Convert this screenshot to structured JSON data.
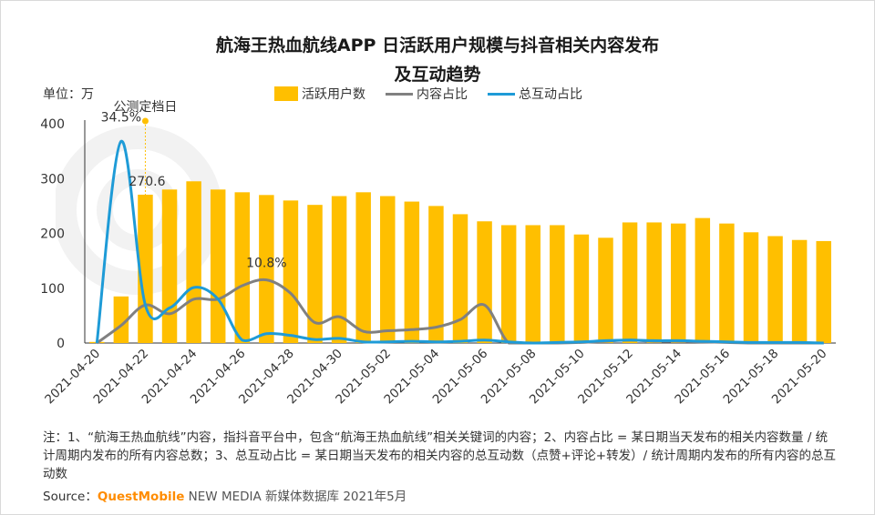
{
  "title_line1": "航海王热血航线APP 日活跃用户规模与抖音相关内容发布",
  "title_line2": "及互动趋势",
  "unit": "单位：万",
  "legend": {
    "bar": "活跃用户数",
    "content": "内容占比",
    "interaction": "总互动占比"
  },
  "annotation": "公测定档日",
  "notes": "注：1、“航海王热血航线”内容，指抖音平台中，包含“航海王热血航线”相关关键词的内容；2、内容占比 = 某日期当天发布的相关内容数量 / 统计周期内发布的所有内容总数；3、总互动占比 = 某日期当天发布的相关内容的总互动数（点赞+评论+转发）/ 统计周期内发布的所有内容的总互动数",
  "source": {
    "prefix": "Source：",
    "brand": "QuestMobile",
    "rest": " NEW MEDIA 新媒体数据库 2021年5月"
  },
  "colors": {
    "bar": "#ffbf00",
    "content": "#808080",
    "interaction": "#1e9bd7",
    "annotation_dot": "#ffbf00"
  },
  "chart_data": {
    "type": "bar",
    "categories": [
      "2021-04-20",
      "2021-04-21",
      "2021-04-22",
      "2021-04-23",
      "2021-04-24",
      "2021-04-25",
      "2021-04-26",
      "2021-04-27",
      "2021-04-28",
      "2021-04-29",
      "2021-04-30",
      "2021-05-01",
      "2021-05-02",
      "2021-05-03",
      "2021-05-04",
      "2021-05-05",
      "2021-05-06",
      "2021-05-07",
      "2021-05-08",
      "2021-05-09",
      "2021-05-10",
      "2021-05-11",
      "2021-05-12",
      "2021-05-13",
      "2021-05-14",
      "2021-05-15",
      "2021-05-16",
      "2021-05-17",
      "2021-05-18",
      "2021-05-19",
      "2021-05-20"
    ],
    "x_tick_labels": [
      "2021-04-20",
      "2021-04-22",
      "2021-04-24",
      "2021-04-26",
      "2021-04-28",
      "2021-04-30",
      "2021-05-02",
      "2021-05-04",
      "2021-05-06",
      "2021-05-08",
      "2021-05-10",
      "2021-05-12",
      "2021-05-14",
      "2021-05-16",
      "2021-05-18",
      "2021-05-20"
    ],
    "y_ticks": [
      0,
      100,
      200,
      300,
      400
    ],
    "ylim": [
      0,
      400
    ],
    "ylabel": "单位：万",
    "series": [
      {
        "name": "活跃用户数",
        "kind": "bar",
        "values": [
          2,
          85,
          270.6,
          280,
          295,
          280,
          275,
          270,
          260,
          252,
          268,
          275,
          268,
          258,
          250,
          235,
          222,
          215,
          215,
          215,
          198,
          192,
          220,
          220,
          218,
          228,
          218,
          202,
          195,
          188,
          186
        ]
      },
      {
        "name": "内容占比",
        "kind": "line",
        "values": [
          0.0,
          3.0,
          6.5,
          5.0,
          7.5,
          7.5,
          9.8,
          10.8,
          8.5,
          3.5,
          4.5,
          2.0,
          2.1,
          2.3,
          2.7,
          4.0,
          6.5,
          0.0,
          0.0,
          0.0,
          0.1,
          0.3,
          0.5,
          0.3,
          0.3,
          0.2,
          0.1,
          0.0,
          0.0,
          0.0,
          0.0
        ]
      },
      {
        "name": "总互动占比",
        "kind": "line",
        "values": [
          0.0,
          34.5,
          6.5,
          6.0,
          9.5,
          7.5,
          0.5,
          1.6,
          1.3,
          0.6,
          0.8,
          0.2,
          0.2,
          0.3,
          0.2,
          0.3,
          0.5,
          0.2,
          0.0,
          0.1,
          0.2,
          0.4,
          0.5,
          0.4,
          0.4,
          0.3,
          0.2,
          0.1,
          0.1,
          0.1,
          0.0
        ]
      }
    ],
    "data_labels": [
      {
        "series": "活跃用户数",
        "index": 2,
        "text": "270.6"
      },
      {
        "series": "总互动占比",
        "index": 1,
        "text": "34.5%"
      },
      {
        "series": "内容占比",
        "index": 7,
        "text": "10.8%"
      }
    ],
    "annotation": {
      "index": 2,
      "text": "公测定档日"
    }
  }
}
